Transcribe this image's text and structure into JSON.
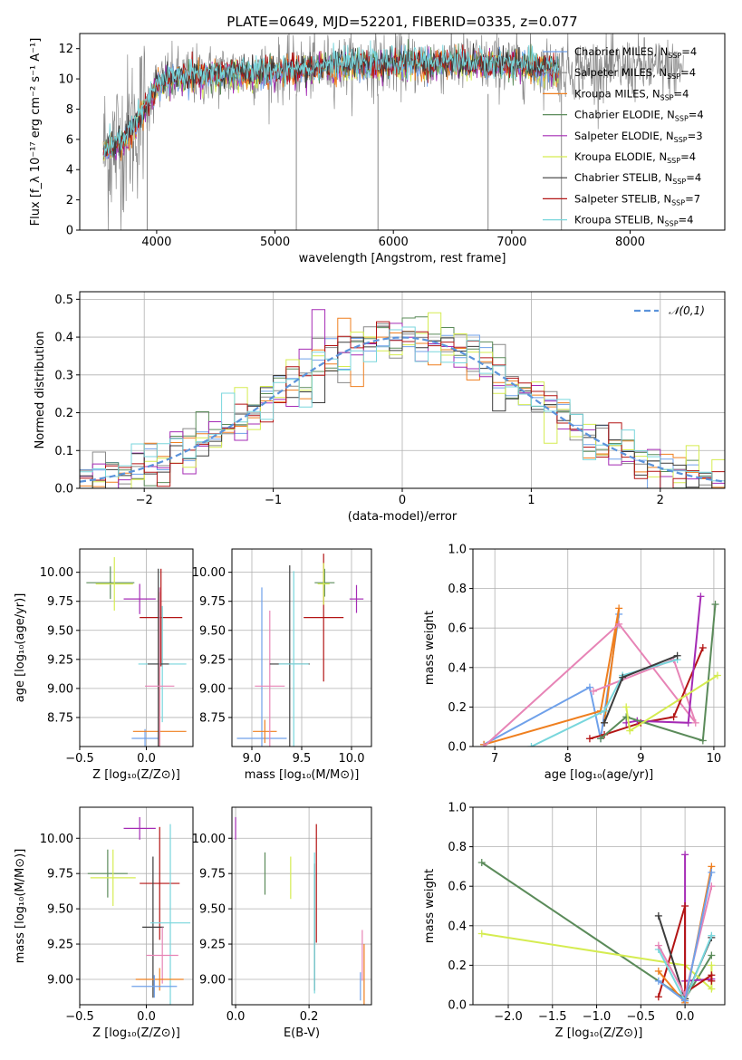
{
  "figure": {
    "title": "PLATE=0649, MJD=52201, FIBERID=0335, z=0.077"
  },
  "palette": {
    "chabrier_miles": "#6fa1ea",
    "salpeter_miles": "#888888",
    "kroupa_miles": "#ef7f1f",
    "chabrier_elodie": "#5b8b5a",
    "salpeter_elodie": "#a52bb5",
    "kroupa_elodie": "#d5ec51",
    "chabrier_stelib": "#3c3c3c",
    "salpeter_stelib": "#b31414",
    "kroupa_stelib": "#78d6dc",
    "pink": "#e784b6",
    "normal": "#5b93db",
    "grid": "#b0b0b0"
  },
  "chart_data": [
    {
      "id": "spectrum",
      "type": "line",
      "xlabel": "wavelength [Angstrom, rest frame]",
      "ylabel": "Flux [f_λ 10⁻¹⁷ erg cm⁻² s⁻¹ A⁻¹]",
      "xlim": [
        3350,
        8800
      ],
      "ylim": [
        0,
        13
      ],
      "xticks": [
        4000,
        5000,
        6000,
        7000,
        8000
      ],
      "yticks": [
        0,
        2,
        4,
        6,
        8,
        10,
        12
      ],
      "grid": false,
      "legend_position": "right",
      "legend": [
        {
          "label": "Chabrier MILES, N_SSP=4",
          "color_key": "chabrier_miles"
        },
        {
          "label": "Salpeter MILES, N_SSP=4",
          "color_key": "salpeter_miles"
        },
        {
          "label": "Kroupa MILES, N_SSP=4",
          "color_key": "kroupa_miles"
        },
        {
          "label": "Chabrier ELODIE, N_SSP=4",
          "color_key": "chabrier_elodie"
        },
        {
          "label": "Salpeter ELODIE, N_SSP=3",
          "color_key": "salpeter_elodie"
        },
        {
          "label": "Kroupa ELODIE, N_SSP=4",
          "color_key": "kroupa_elodie"
        },
        {
          "label": "Chabrier STELIB, N_SSP=4",
          "color_key": "chabrier_stelib"
        },
        {
          "label": "Salpeter STELIB, N_SSP=7",
          "color_key": "salpeter_stelib"
        },
        {
          "label": "Kroupa STELIB, N_SSP=4",
          "color_key": "kroupa_stelib"
        }
      ],
      "continuum": {
        "wavelength": [
          3550,
          3700,
          3800,
          3900,
          4000,
          4100,
          4500,
          5000,
          5500,
          6000,
          6500,
          7000,
          7400
        ],
        "flux": [
          5.2,
          5.8,
          6.8,
          8.0,
          9.5,
          10.0,
          10.3,
          10.5,
          10.9,
          11.0,
          11.1,
          10.9,
          10.7
        ]
      },
      "observed_range": [
        3550,
        8450
      ],
      "model_range": [
        3550,
        7400
      ]
    },
    {
      "id": "residuals",
      "type": "histogram",
      "xlabel": "(data-model)/error",
      "ylabel": "Normed distribution",
      "xlim": [
        -2.5,
        2.5
      ],
      "ylim": [
        0,
        0.52
      ],
      "xticks": [
        -2,
        -1,
        0,
        1,
        2
      ],
      "yticks": [
        0.0,
        0.1,
        0.2,
        0.3,
        0.4,
        0.5
      ],
      "grid": true,
      "bin_width": 0.1,
      "legend": [
        {
          "label": "𝒩(0,1)",
          "style": "dashed",
          "color_key": "normal"
        }
      ],
      "series_color_keys": [
        "chabrier_miles",
        "salpeter_miles",
        "kroupa_miles",
        "chabrier_elodie",
        "salpeter_elodie",
        "kroupa_elodie",
        "chabrier_stelib",
        "salpeter_stelib",
        "kroupa_stelib"
      ]
    },
    {
      "id": "age_vs_Z",
      "type": "errorbar",
      "xlabel": "Z [log₁₀(Z/Z⊙)]",
      "ylabel": "age  [log₁₀(age/yr)]",
      "xlim": [
        -0.5,
        0.35
      ],
      "ylim": [
        8.5,
        10.2
      ],
      "xticks": [
        -0.5,
        0.0
      ],
      "yticks": [
        8.75,
        9.0,
        9.25,
        9.5,
        9.75,
        10.0
      ],
      "grid": true,
      "points": [
        {
          "c": "chabrier_elodie",
          "x": -0.27,
          "xerr": 0.18,
          "y": 9.91,
          "yerr": 0.14
        },
        {
          "c": "kroupa_elodie",
          "x": -0.24,
          "xerr": 0.14,
          "y": 9.9,
          "yerr": 0.23
        },
        {
          "c": "salpeter_elodie",
          "x": -0.05,
          "xerr": 0.12,
          "y": 9.77,
          "yerr": 0.13
        },
        {
          "c": "chabrier_miles",
          "x": -0.01,
          "xerr": 0.1,
          "y": 8.57,
          "yerr": 0.08
        },
        {
          "c": "kroupa_miles",
          "x": 0.1,
          "xerr": 0.2,
          "y": 8.63,
          "yerr": 1.2
        },
        {
          "c": "salpeter_stelib",
          "x": 0.11,
          "xerr": 0.16,
          "y": 9.61,
          "yerr": 0.42
        },
        {
          "c": "kroupa_stelib",
          "x": 0.12,
          "xerr": 0.18,
          "y": 9.21,
          "yerr": 0.5
        },
        {
          "c": "chabrier_stelib",
          "x": 0.09,
          "xerr": 0.08,
          "y": 9.21,
          "yerr": 0.82
        },
        {
          "c": "pink",
          "x": 0.1,
          "xerr": 0.11,
          "y": 9.02,
          "yerr": 0.85
        }
      ]
    },
    {
      "id": "age_vs_mass",
      "type": "errorbar",
      "xlabel": "mass [log₁₀(M/M⊙)]",
      "ylabel": "",
      "xlim": [
        8.8,
        10.2
      ],
      "ylim": [
        8.5,
        10.2
      ],
      "xticks": [
        9.0,
        9.5,
        10.0
      ],
      "yticks": [
        8.75,
        9.0,
        9.25,
        9.5,
        9.75,
        10.0
      ],
      "grid": true,
      "points": [
        {
          "c": "chabrier_miles",
          "x": 9.1,
          "xerr": 0.25,
          "y": 8.57,
          "yerr": 1.3
        },
        {
          "c": "kroupa_miles",
          "x": 9.13,
          "xerr": 0.12,
          "y": 8.63,
          "yerr": 0.1
        },
        {
          "c": "pink",
          "x": 9.18,
          "xerr": 0.15,
          "y": 9.02,
          "yerr": 0.65
        },
        {
          "c": "chabrier_stelib",
          "x": 9.38,
          "xerr": 0.2,
          "y": 9.21,
          "yerr": 0.85
        },
        {
          "c": "kroupa_stelib",
          "x": 9.42,
          "xerr": 0.15,
          "y": 9.21,
          "yerr": 0.8
        },
        {
          "c": "salpeter_stelib",
          "x": 9.72,
          "xerr": 0.2,
          "y": 9.61,
          "yerr": 0.55
        },
        {
          "c": "chabrier_elodie",
          "x": 9.73,
          "xerr": 0.1,
          "y": 9.91,
          "yerr": 0.12
        },
        {
          "c": "kroupa_elodie",
          "x": 9.72,
          "xerr": 0.06,
          "y": 9.9,
          "yerr": 0.18
        },
        {
          "c": "salpeter_elodie",
          "x": 10.05,
          "xerr": 0.07,
          "y": 9.77,
          "yerr": 0.12
        }
      ]
    },
    {
      "id": "massweight_vs_age",
      "type": "line",
      "xlabel": "age  [log₁₀(age/yr)]",
      "ylabel": "mass weight",
      "xlim": [
        6.7,
        10.15
      ],
      "ylim": [
        0,
        1
      ],
      "xticks": [
        7,
        8,
        9,
        10
      ],
      "yticks": [
        0.0,
        0.2,
        0.4,
        0.6,
        0.8,
        1.0
      ],
      "grid": true,
      "series": [
        {
          "c": "chabrier_miles",
          "x": [
            6.85,
            8.3,
            8.45,
            8.7
          ],
          "y": [
            0.01,
            0.3,
            0.04,
            0.67
          ]
        },
        {
          "c": "kroupa_miles",
          "x": [
            6.85,
            8.45,
            8.7,
            8.5
          ],
          "y": [
            0.01,
            0.18,
            0.7,
            0.12
          ]
        },
        {
          "c": "pink",
          "x": [
            6.85,
            8.7,
            9.75,
            9.45,
            8.35
          ],
          "y": [
            0.0,
            0.62,
            0.12,
            0.44,
            0.28
          ]
        },
        {
          "c": "kroupa_stelib",
          "x": [
            7.5,
            8.5,
            8.75,
            9.5
          ],
          "y": [
            0.0,
            0.18,
            0.36,
            0.44
          ]
        },
        {
          "c": "chabrier_stelib",
          "x": [
            8.5,
            8.75,
            9.5
          ],
          "y": [
            0.12,
            0.35,
            0.46
          ]
        },
        {
          "c": "salpeter_stelib",
          "x": [
            8.3,
            8.5,
            9.0,
            9.45,
            9.85
          ],
          "y": [
            0.04,
            0.06,
            0.12,
            0.15,
            0.5
          ]
        },
        {
          "c": "salpeter_elodie",
          "x": [
            8.8,
            8.95,
            9.65,
            9.82
          ],
          "y": [
            0.12,
            0.13,
            0.12,
            0.76
          ]
        },
        {
          "c": "chabrier_elodie",
          "x": [
            8.45,
            8.8,
            9.85,
            10.02
          ],
          "y": [
            0.04,
            0.15,
            0.03,
            0.72
          ]
        },
        {
          "c": "kroupa_elodie",
          "x": [
            8.8,
            8.85,
            10.05
          ],
          "y": [
            0.2,
            0.08,
            0.36
          ]
        }
      ]
    },
    {
      "id": "mass_vs_Z",
      "type": "errorbar",
      "xlabel": "Z [log₁₀(Z/Z⊙)]",
      "ylabel": "mass [log₁₀(M/M⊙)]",
      "xlim": [
        -0.5,
        0.35
      ],
      "ylim": [
        8.82,
        10.22
      ],
      "xticks": [
        -0.5,
        0.0
      ],
      "yticks": [
        9.0,
        9.25,
        9.5,
        9.75,
        10.0
      ],
      "grid": true,
      "points": [
        {
          "c": "chabrier_elodie",
          "x": -0.29,
          "xerr": 0.15,
          "y": 9.75,
          "yerr": 0.17
        },
        {
          "c": "kroupa_elodie",
          "x": -0.25,
          "xerr": 0.17,
          "y": 9.72,
          "yerr": 0.2
        },
        {
          "c": "salpeter_elodie",
          "x": -0.05,
          "xerr": 0.12,
          "y": 10.07,
          "yerr": 0.08
        },
        {
          "c": "salpeter_stelib",
          "x": 0.1,
          "xerr": 0.15,
          "y": 9.68,
          "yerr": 0.4
        },
        {
          "c": "chabrier_stelib",
          "x": 0.05,
          "xerr": 0.08,
          "y": 9.37,
          "yerr": 0.5
        },
        {
          "c": "kroupa_stelib",
          "x": 0.18,
          "xerr": 0.15,
          "y": 9.4,
          "yerr": 0.7
        },
        {
          "c": "pink",
          "x": 0.12,
          "xerr": 0.12,
          "y": 9.17,
          "yerr": 0.2
        },
        {
          "c": "kroupa_miles",
          "x": 0.1,
          "xerr": 0.18,
          "y": 9.0,
          "yerr": 0.08
        },
        {
          "c": "chabrier_miles",
          "x": 0.06,
          "xerr": 0.17,
          "y": 8.95,
          "yerr": 0.08
        }
      ]
    },
    {
      "id": "mass_vs_EBV",
      "type": "errorbar",
      "xlabel": "E(B-V)",
      "ylabel": "",
      "xlim": [
        -0.01,
        0.37
      ],
      "ylim": [
        8.82,
        10.22
      ],
      "xticks": [
        0.0,
        0.2
      ],
      "yticks": [
        9.0,
        9.25,
        9.5,
        9.75,
        10.0
      ],
      "grid": true,
      "points": [
        {
          "c": "salpeter_elodie",
          "x": 0.0,
          "xerr": 0,
          "y": 10.07,
          "yerr": 0.08
        },
        {
          "c": "chabrier_elodie",
          "x": 0.08,
          "xerr": 0,
          "y": 9.75,
          "yerr": 0.15
        },
        {
          "c": "kroupa_elodie",
          "x": 0.15,
          "xerr": 0,
          "y": 9.72,
          "yerr": 0.15
        },
        {
          "c": "salpeter_stelib",
          "x": 0.22,
          "xerr": 0,
          "y": 9.68,
          "yerr": 0.42
        },
        {
          "c": "chabrier_stelib",
          "x": 0.215,
          "xerr": 0,
          "y": 9.37,
          "yerr": 0.45
        },
        {
          "c": "kroupa_stelib",
          "x": 0.215,
          "xerr": 0,
          "y": 9.4,
          "yerr": 0.5
        },
        {
          "c": "pink",
          "x": 0.345,
          "xerr": 0,
          "y": 9.17,
          "yerr": 0.18
        },
        {
          "c": "kroupa_miles",
          "x": 0.35,
          "xerr": 0,
          "y": 9.0,
          "yerr": 0.25
        },
        {
          "c": "chabrier_miles",
          "x": 0.34,
          "xerr": 0,
          "y": 8.95,
          "yerr": 0.1
        }
      ]
    },
    {
      "id": "massweight_vs_Z",
      "type": "line",
      "xlabel": "Z [log₁₀(Z/Z⊙)]",
      "ylabel": "mass weight",
      "xlim": [
        -2.4,
        0.45
      ],
      "ylim": [
        0,
        1
      ],
      "xticks": [
        -2.0,
        -1.5,
        -1.0,
        -0.5,
        0.0
      ],
      "yticks": [
        0.0,
        0.2,
        0.4,
        0.6,
        0.8,
        1.0
      ],
      "grid": true,
      "series": [
        {
          "c": "chabrier_elodie",
          "x": [
            -2.3,
            0.0,
            0.3
          ],
          "y": [
            0.72,
            0.03,
            0.25
          ]
        },
        {
          "c": "kroupa_elodie",
          "x": [
            -2.3,
            0.0,
            0.3,
            0.3
          ],
          "y": [
            0.36,
            0.2,
            0.08,
            0.2
          ]
        },
        {
          "c": "salpeter_elodie",
          "x": [
            0.0,
            0.0,
            0.3
          ],
          "y": [
            0.76,
            0.12,
            0.13
          ]
        },
        {
          "c": "salpeter_stelib",
          "x": [
            -0.3,
            0.0,
            0.0,
            0.3,
            0.3
          ],
          "y": [
            0.04,
            0.5,
            0.06,
            0.15,
            0.12
          ]
        },
        {
          "c": "chabrier_stelib",
          "x": [
            -0.3,
            0.0,
            0.3
          ],
          "y": [
            0.45,
            0.03,
            0.34
          ]
        },
        {
          "c": "kroupa_stelib",
          "x": [
            -0.3,
            0.0,
            0.3
          ],
          "y": [
            0.28,
            0.02,
            0.35
          ]
        },
        {
          "c": "kroupa_miles",
          "x": [
            -0.3,
            0.0,
            0.3
          ],
          "y": [
            0.17,
            0.01,
            0.7
          ]
        },
        {
          "c": "pink",
          "x": [
            -0.3,
            0.0,
            0.3
          ],
          "y": [
            0.3,
            0.05,
            0.6
          ]
        },
        {
          "c": "chabrier_miles",
          "x": [
            -0.3,
            0.0,
            0.3
          ],
          "y": [
            0.12,
            0.02,
            0.67
          ]
        }
      ]
    }
  ]
}
